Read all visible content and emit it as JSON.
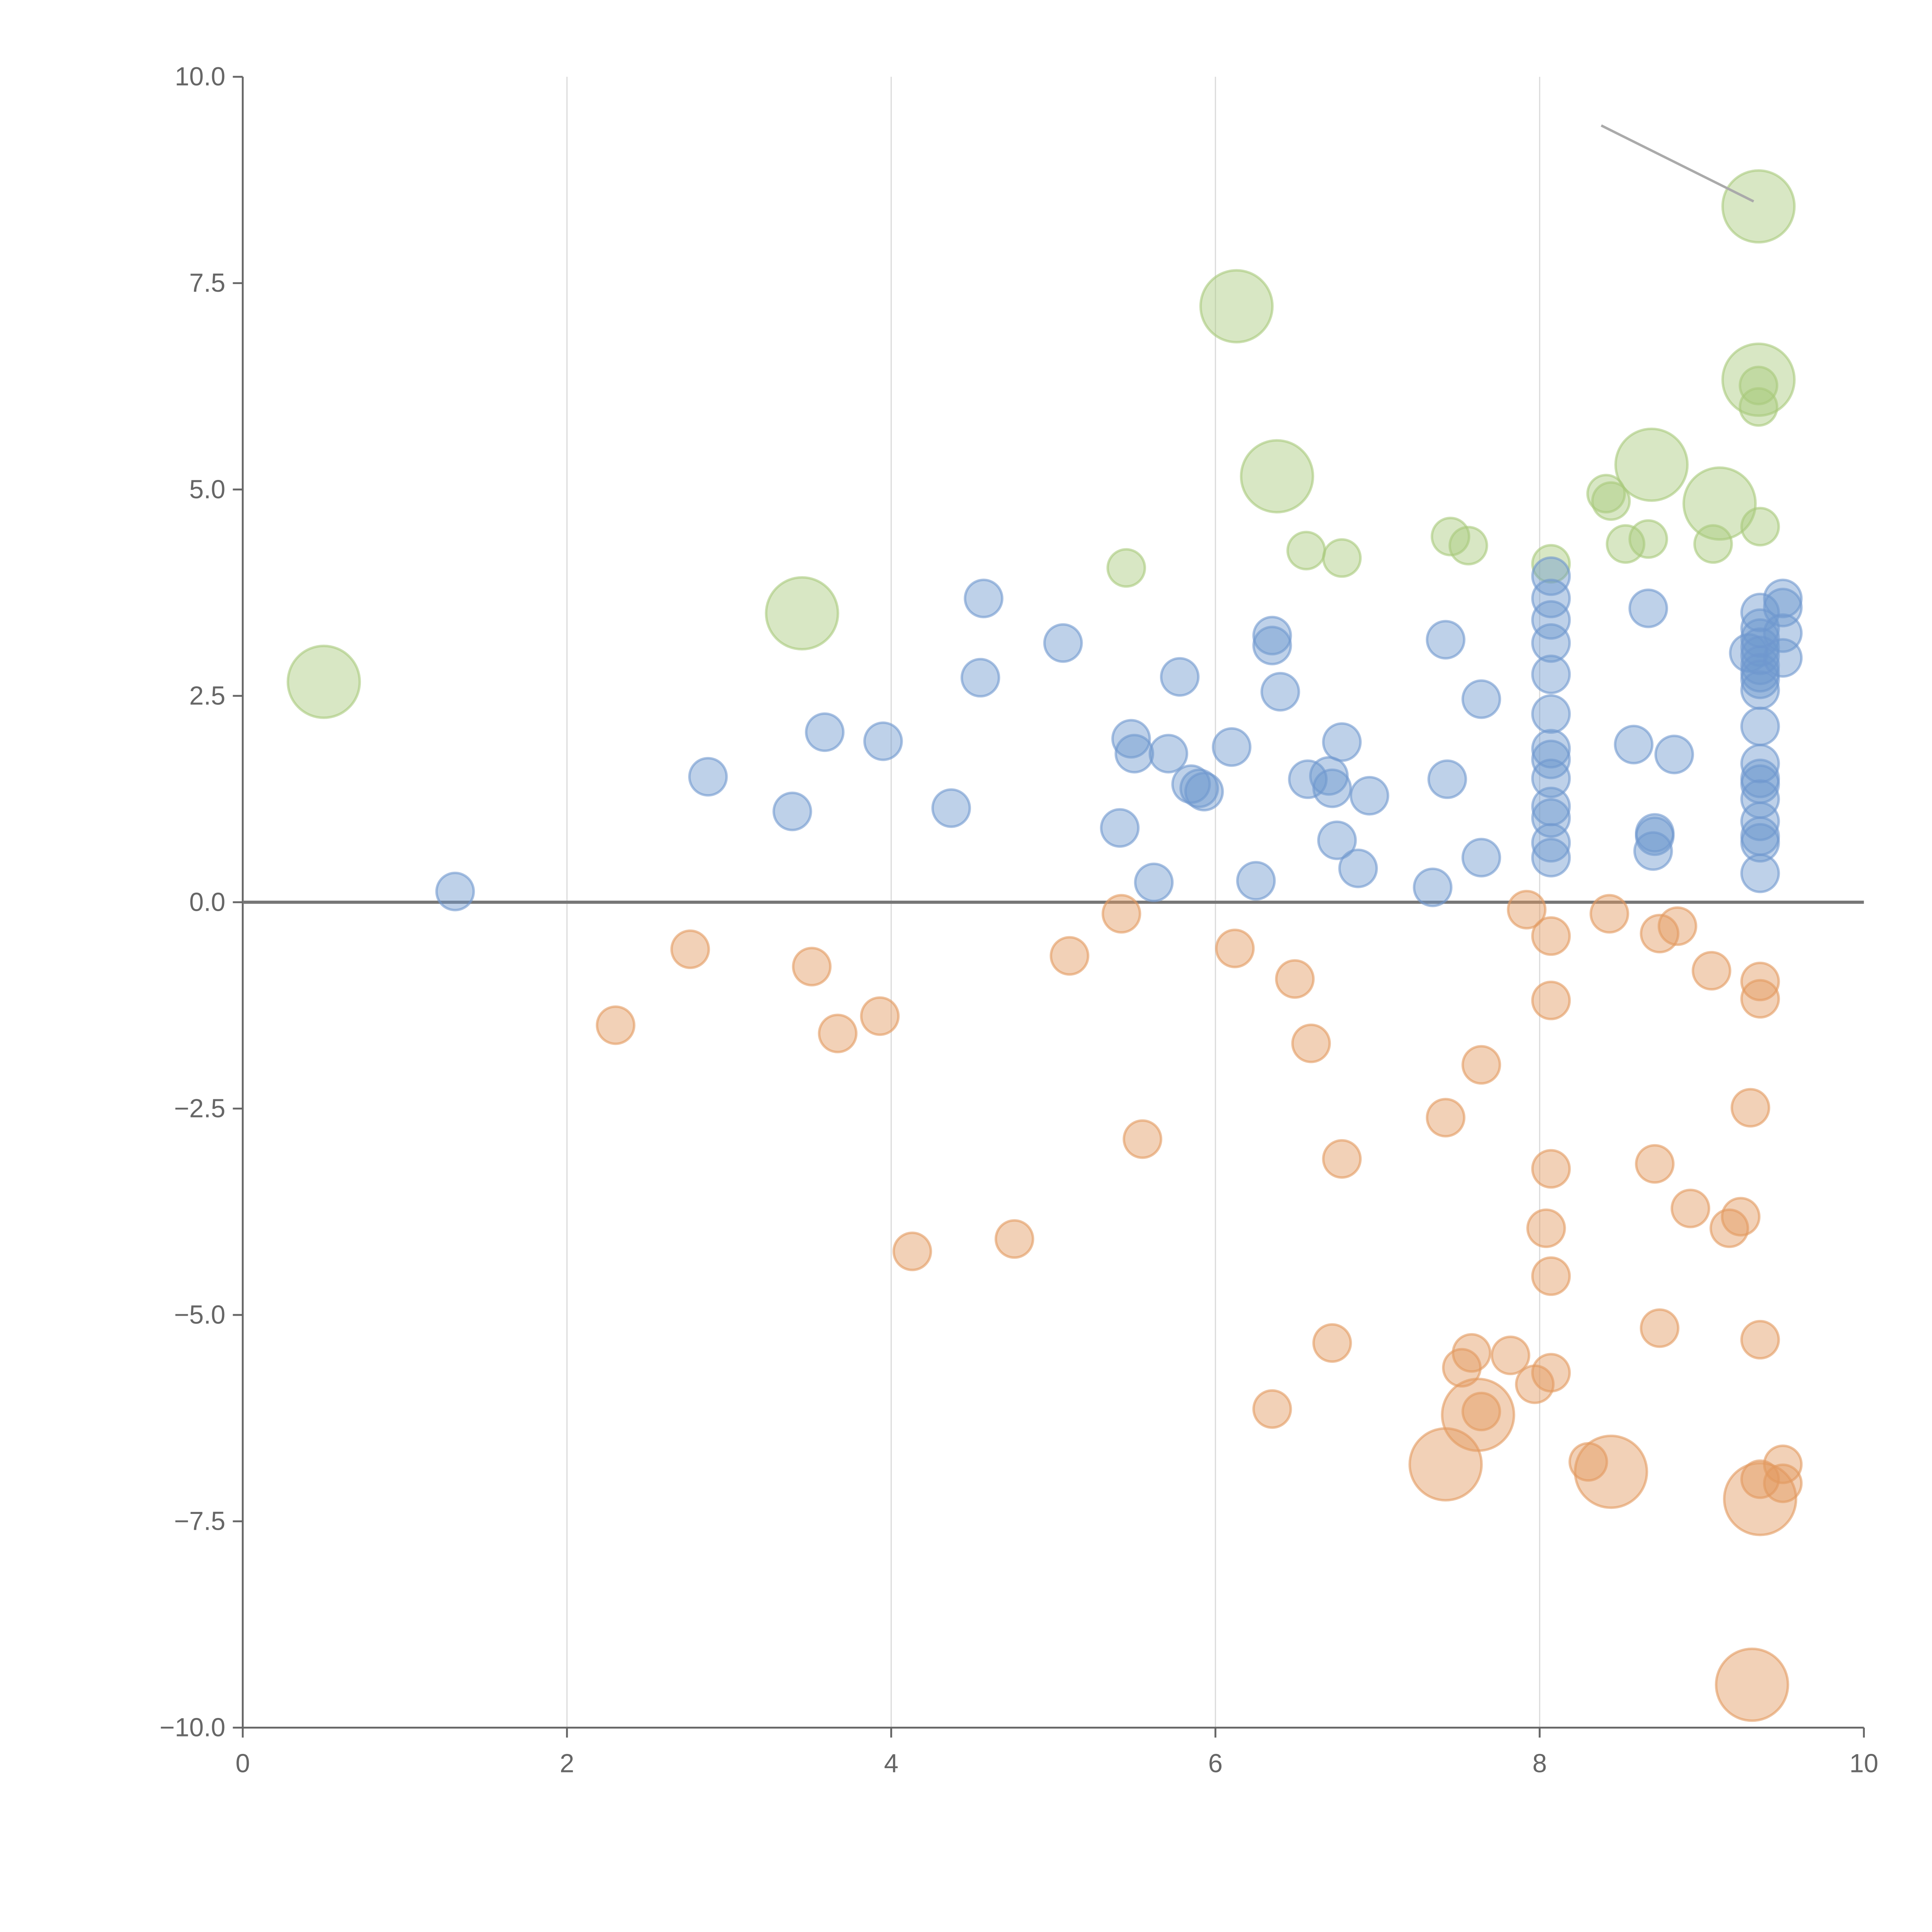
{
  "chart_data": {
    "type": "scatter",
    "title": "",
    "xlabel": "",
    "ylabel": "",
    "xlim": [
      0,
      10
    ],
    "ylim": [
      -10,
      10
    ],
    "xticks": [
      "0",
      "2",
      "4",
      "6",
      "8",
      "10"
    ],
    "xtick_values": [
      0,
      2,
      4,
      6,
      8,
      10
    ],
    "yticks": [
      "10.0",
      "7.5",
      "5.0",
      "2.5",
      "0.0",
      "−2.5",
      "−5.0",
      "−7.5",
      "−10.0"
    ],
    "ytick_values": [
      10,
      7.5,
      5,
      2.5,
      0,
      -2.5,
      -5,
      -7.5,
      -10
    ],
    "grid": "vertical",
    "zero_line": true,
    "size_note": "third value = relative bubble size (1 small, 4 large)",
    "series": [
      {
        "name": "green",
        "color": "#a9c97c",
        "points": [
          [
            0.5,
            2.67,
            4
          ],
          [
            3.45,
            3.5,
            4
          ],
          [
            5.45,
            4.05,
            1
          ],
          [
            6.13,
            7.22,
            4
          ],
          [
            6.38,
            5.16,
            4
          ],
          [
            6.56,
            4.26,
            1
          ],
          [
            6.78,
            4.17,
            1
          ],
          [
            7.45,
            4.43,
            1
          ],
          [
            7.56,
            4.32,
            1
          ],
          [
            8.07,
            4.1,
            1
          ],
          [
            8.41,
            4.95,
            1
          ],
          [
            8.44,
            4.86,
            1
          ],
          [
            8.53,
            4.34,
            1
          ],
          [
            8.67,
            4.4,
            1
          ],
          [
            8.69,
            5.3,
            4
          ],
          [
            9.11,
            4.83,
            4
          ],
          [
            9.07,
            4.34,
            1
          ],
          [
            9.36,
            4.55,
            1
          ],
          [
            9.35,
            8.43,
            4
          ],
          [
            9.35,
            6.33,
            4
          ],
          [
            9.35,
            6.26,
            1
          ],
          [
            9.35,
            6.0,
            1
          ]
        ]
      },
      {
        "name": "blue",
        "color": "#6f98cf",
        "points": [
          [
            1.31,
            0.13,
            1
          ],
          [
            2.87,
            1.52,
            1
          ],
          [
            3.39,
            1.1,
            1
          ],
          [
            3.59,
            2.06,
            1
          ],
          [
            3.95,
            1.95,
            1
          ],
          [
            4.37,
            1.14,
            1
          ],
          [
            4.55,
            2.72,
            1
          ],
          [
            4.57,
            3.68,
            1
          ],
          [
            5.06,
            3.14,
            1
          ],
          [
            5.41,
            0.9,
            1
          ],
          [
            5.48,
            1.98,
            1
          ],
          [
            5.5,
            1.8,
            1
          ],
          [
            5.62,
            0.24,
            1
          ],
          [
            5.71,
            1.8,
            1
          ],
          [
            5.78,
            2.73,
            1
          ],
          [
            5.85,
            1.43,
            1
          ],
          [
            5.9,
            1.38,
            1
          ],
          [
            5.93,
            1.34,
            1
          ],
          [
            6.1,
            1.88,
            1
          ],
          [
            6.25,
            0.26,
            1
          ],
          [
            6.35,
            3.23,
            1
          ],
          [
            6.35,
            3.11,
            1
          ],
          [
            6.4,
            2.55,
            1
          ],
          [
            6.57,
            1.49,
            1
          ],
          [
            6.7,
            1.53,
            1
          ],
          [
            6.72,
            1.38,
            1
          ],
          [
            6.75,
            0.75,
            1
          ],
          [
            6.78,
            1.94,
            1
          ],
          [
            6.88,
            0.41,
            1
          ],
          [
            6.95,
            1.29,
            1
          ],
          [
            7.34,
            0.18,
            1
          ],
          [
            7.42,
            3.18,
            1
          ],
          [
            7.43,
            1.49,
            1
          ],
          [
            7.64,
            2.46,
            1
          ],
          [
            7.64,
            0.54,
            1
          ],
          [
            8.07,
            3.95,
            1
          ],
          [
            8.07,
            3.68,
            1
          ],
          [
            8.07,
            3.42,
            1
          ],
          [
            8.07,
            3.14,
            1
          ],
          [
            8.07,
            2.76,
            1
          ],
          [
            8.07,
            2.28,
            1
          ],
          [
            8.07,
            1.86,
            1
          ],
          [
            8.07,
            1.73,
            1
          ],
          [
            8.07,
            1.5,
            1
          ],
          [
            8.07,
            1.16,
            1
          ],
          [
            8.07,
            1.02,
            1
          ],
          [
            8.07,
            0.72,
            1
          ],
          [
            8.07,
            0.54,
            1
          ],
          [
            8.58,
            1.91,
            1
          ],
          [
            8.67,
            3.56,
            1
          ],
          [
            8.71,
            0.84,
            1
          ],
          [
            8.71,
            0.8,
            1
          ],
          [
            8.7,
            0.62,
            1
          ],
          [
            8.83,
            1.79,
            1
          ],
          [
            9.29,
            3.02,
            1
          ],
          [
            9.36,
            3.51,
            1
          ],
          [
            9.36,
            3.32,
            1
          ],
          [
            9.36,
            3.2,
            1
          ],
          [
            9.36,
            3.09,
            1
          ],
          [
            9.36,
            2.99,
            1
          ],
          [
            9.36,
            2.87,
            1
          ],
          [
            9.36,
            2.78,
            1
          ],
          [
            9.36,
            2.7,
            1
          ],
          [
            9.36,
            2.57,
            1
          ],
          [
            9.36,
            2.13,
            1
          ],
          [
            9.36,
            1.68,
            1
          ],
          [
            9.36,
            1.5,
            1
          ],
          [
            9.36,
            1.43,
            1
          ],
          [
            9.36,
            1.25,
            1
          ],
          [
            9.36,
            0.98,
            1
          ],
          [
            9.36,
            0.8,
            1
          ],
          [
            9.36,
            0.72,
            1
          ],
          [
            9.36,
            0.35,
            1
          ],
          [
            9.5,
            3.68,
            1
          ],
          [
            9.5,
            3.57,
            1
          ],
          [
            9.5,
            3.26,
            1
          ],
          [
            9.5,
            2.96,
            1
          ]
        ]
      },
      {
        "name": "orange",
        "color": "#e39a5f",
        "points": [
          [
            2.3,
            -1.49,
            1
          ],
          [
            2.76,
            -0.57,
            1
          ],
          [
            3.51,
            -0.78,
            1
          ],
          [
            3.67,
            -1.59,
            1
          ],
          [
            3.93,
            -1.38,
            1
          ],
          [
            4.13,
            -4.23,
            1
          ],
          [
            4.76,
            -4.08,
            1
          ],
          [
            5.1,
            -0.65,
            1
          ],
          [
            5.42,
            -0.14,
            1
          ],
          [
            5.55,
            -2.87,
            1
          ],
          [
            6.12,
            -0.56,
            1
          ],
          [
            6.35,
            -6.14,
            1
          ],
          [
            6.49,
            -0.93,
            1
          ],
          [
            6.59,
            -1.71,
            1
          ],
          [
            6.72,
            -5.34,
            1
          ],
          [
            6.78,
            -3.11,
            1
          ],
          [
            7.42,
            -2.61,
            1
          ],
          [
            7.42,
            -6.81,
            4
          ],
          [
            7.52,
            -5.64,
            1
          ],
          [
            7.58,
            -5.46,
            1
          ],
          [
            7.62,
            -6.21,
            4
          ],
          [
            7.64,
            -6.17,
            1
          ],
          [
            7.64,
            -1.97,
            1
          ],
          [
            7.82,
            -5.49,
            1
          ],
          [
            7.92,
            -0.09,
            1
          ],
          [
            7.97,
            -5.84,
            1
          ],
          [
            8.07,
            -0.41,
            1
          ],
          [
            8.07,
            -1.19,
            1
          ],
          [
            8.07,
            -3.23,
            1
          ],
          [
            8.04,
            -3.95,
            1
          ],
          [
            8.07,
            -4.53,
            1
          ],
          [
            8.07,
            -5.7,
            1
          ],
          [
            8.3,
            -6.78,
            1
          ],
          [
            8.43,
            -0.14,
            1
          ],
          [
            8.44,
            -6.9,
            4
          ],
          [
            8.71,
            -3.17,
            1
          ],
          [
            8.74,
            -0.38,
            1
          ],
          [
            8.74,
            -5.16,
            1
          ],
          [
            8.85,
            -0.29,
            1
          ],
          [
            8.93,
            -3.71,
            1
          ],
          [
            9.06,
            -0.83,
            1
          ],
          [
            9.17,
            -3.95,
            1
          ],
          [
            9.24,
            -3.81,
            1
          ],
          [
            9.3,
            -2.49,
            1
          ],
          [
            9.31,
            -9.48,
            4
          ],
          [
            9.36,
            -0.96,
            1
          ],
          [
            9.36,
            -1.17,
            1
          ],
          [
            9.36,
            -5.3,
            1
          ],
          [
            9.36,
            -6.99,
            1
          ],
          [
            9.36,
            -7.23,
            4
          ],
          [
            9.5,
            -6.81,
            1
          ],
          [
            9.5,
            -7.04,
            1
          ]
        ]
      }
    ],
    "annotation_lines": [
      [
        [
          8.38,
          9.41
        ],
        [
          9.32,
          8.49
        ]
      ]
    ]
  }
}
